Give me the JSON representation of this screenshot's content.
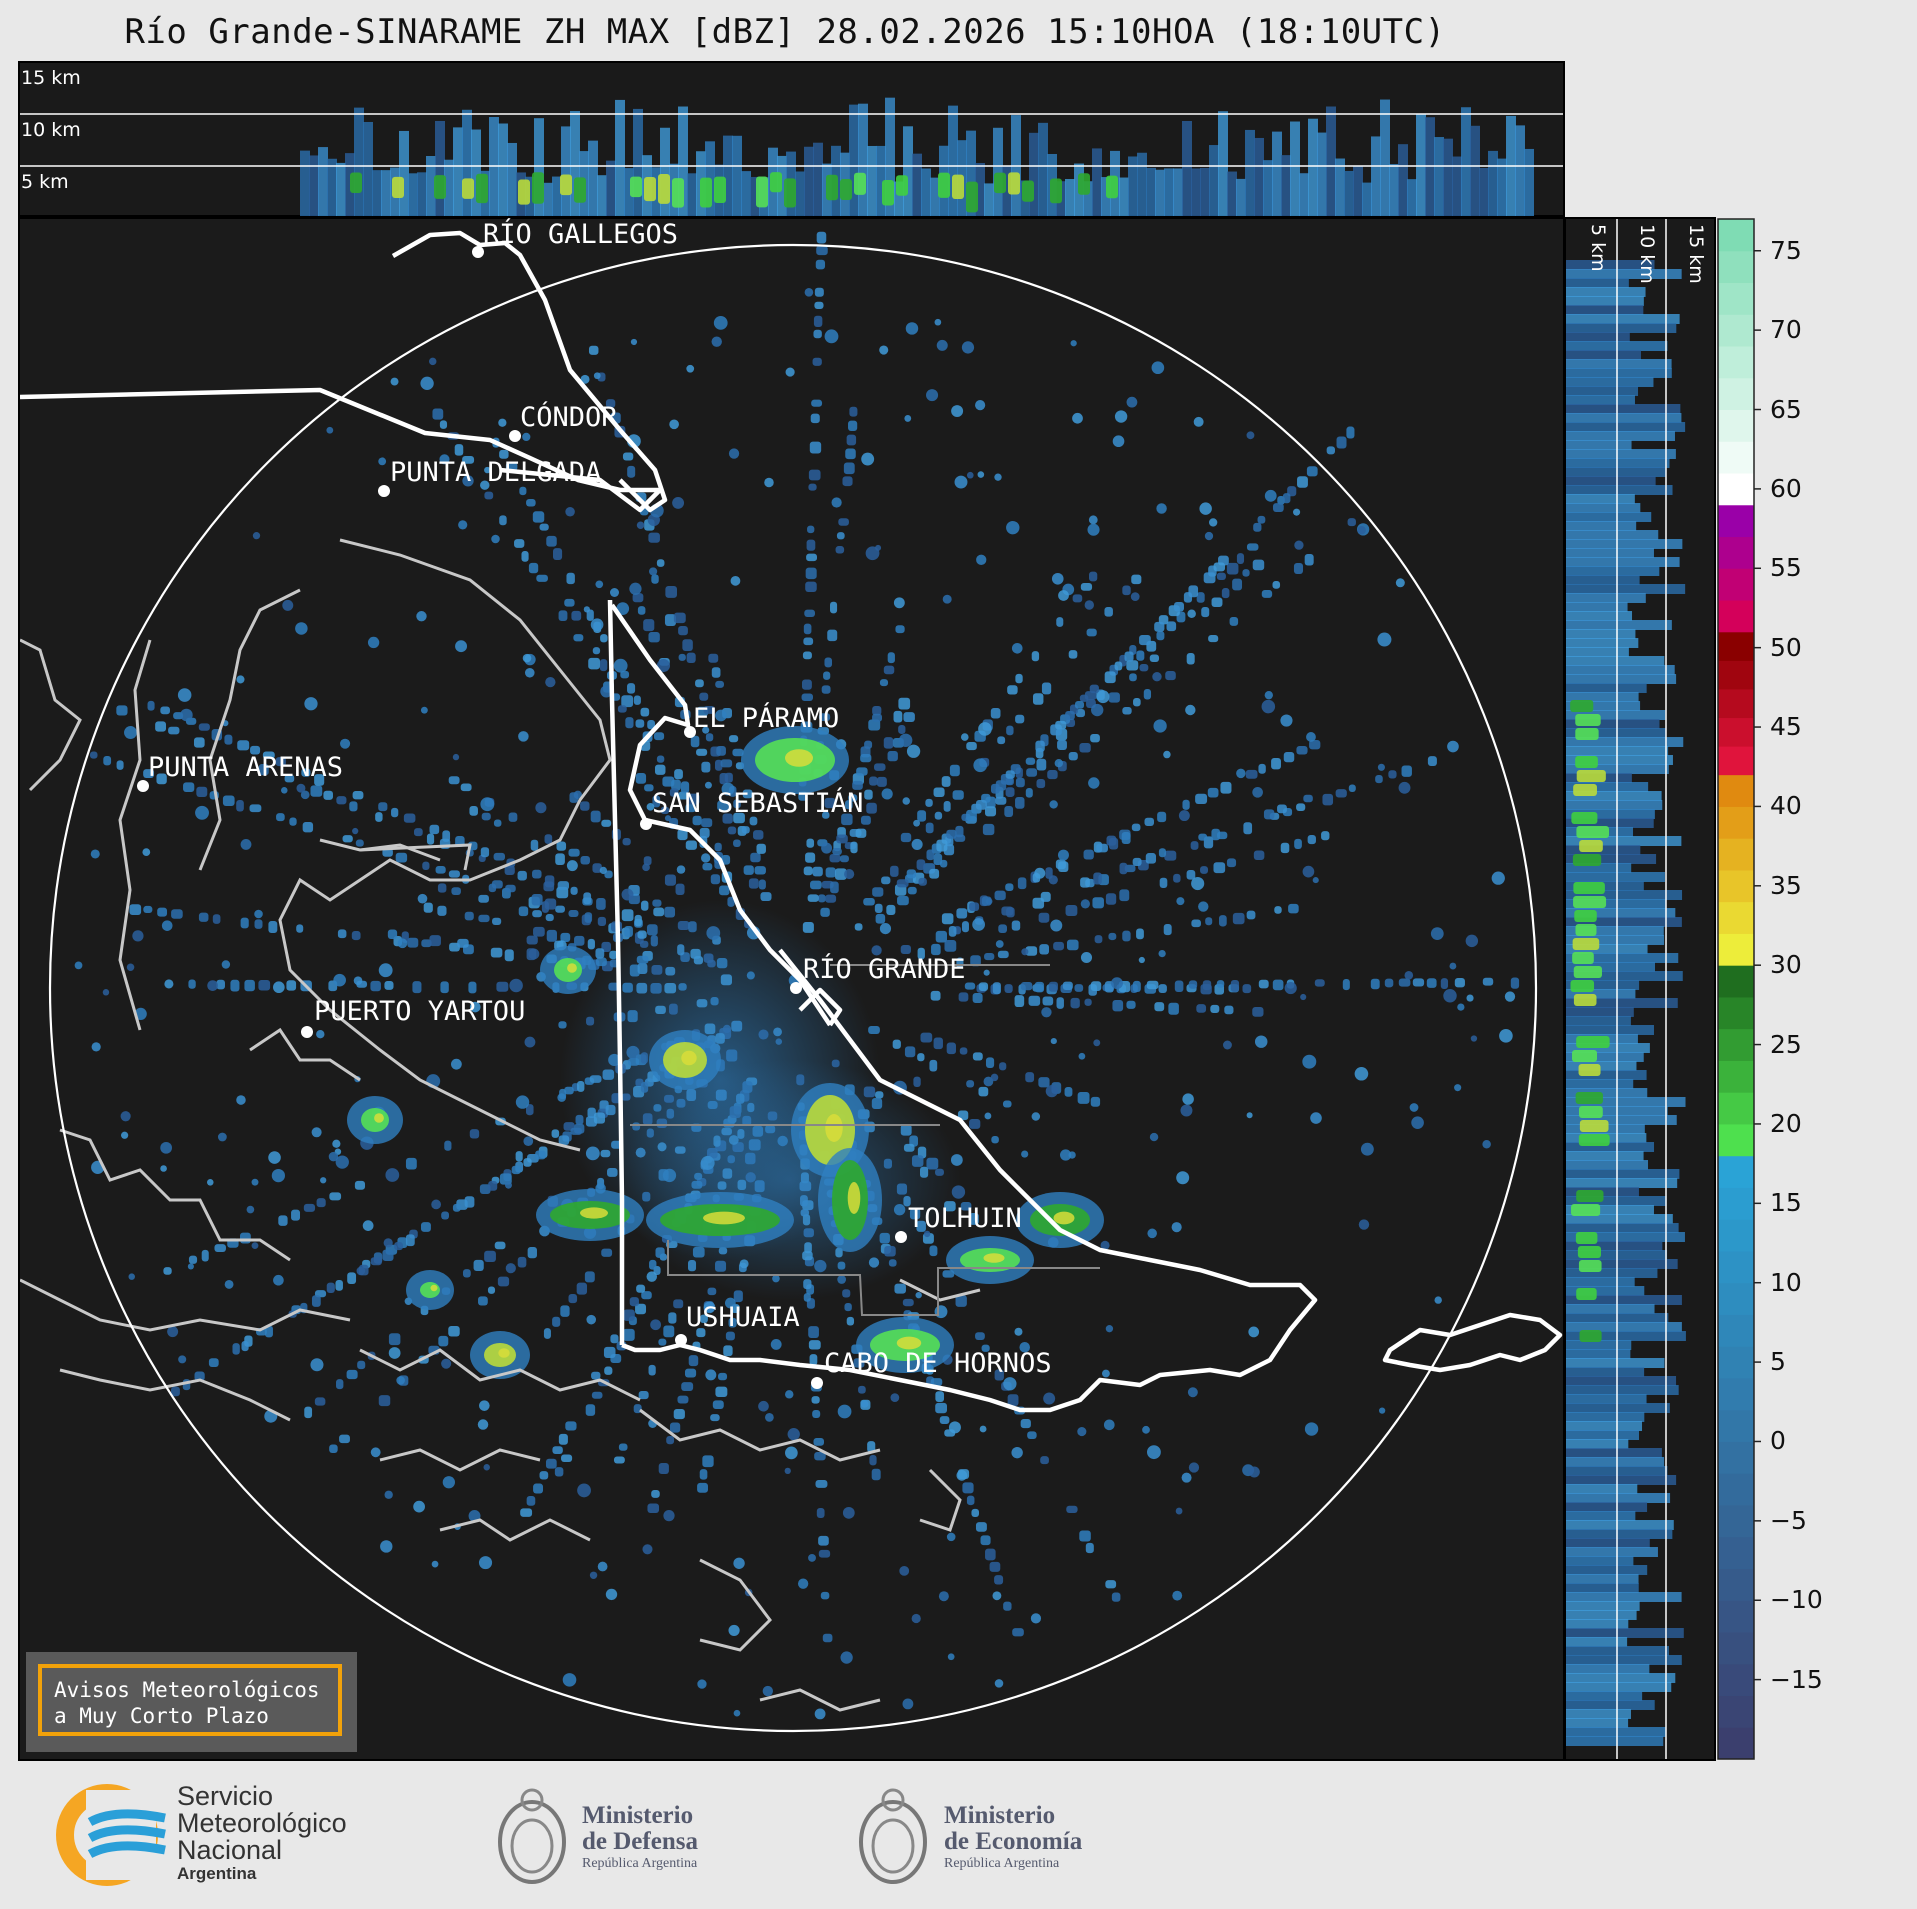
{
  "title": "Río Grande-SINARAME ZH MAX [dBZ] 28.02.2026 15:10HOA (18:10UTC)",
  "top_profile_labels": [
    "15 km",
    "10 km",
    "5 km"
  ],
  "side_profile_labels": [
    "5 km",
    "10 km",
    "15 km"
  ],
  "cities": [
    {
      "name": "RÍO GALLEGOS"
    },
    {
      "name": "CÓNDOR"
    },
    {
      "name": "PUNTA DELGADA"
    },
    {
      "name": "EL PÁRAMO"
    },
    {
      "name": "PUNTA ARENAS"
    },
    {
      "name": "SAN SEBASTIÁN"
    },
    {
      "name": "RÍO GRANDE"
    },
    {
      "name": "PUERTO YARTOU"
    },
    {
      "name": "TOLHUIN"
    },
    {
      "name": "USHUAIA"
    },
    {
      "name": "CABO DE HORNOS"
    }
  ],
  "colorbar": {
    "unit": "dBZ",
    "ticks": [
      "75",
      "70",
      "65",
      "60",
      "55",
      "50",
      "45",
      "40",
      "35",
      "30",
      "25",
      "20",
      "15",
      "10",
      "5",
      "0",
      "−5",
      "−10",
      "−15"
    ],
    "bands": [
      {
        "from": -20,
        "to": 18,
        "color_low": "#3b3f6e",
        "color_high": "#2aa3d6"
      },
      {
        "from": 18,
        "to": 30,
        "color_low": "#4ee04e",
        "color_high": "#1f6e1f"
      },
      {
        "from": 30,
        "to": 42,
        "color_low": "#eded3a",
        "color_high": "#e08a10"
      },
      {
        "from": 42,
        "to": 51,
        "color_low": "#e0143c",
        "color_high": "#8a0000"
      },
      {
        "from": 51,
        "to": 59,
        "color_low": "#d4005a",
        "color_high": "#9a00a8"
      },
      {
        "from": 59,
        "to": 77,
        "color_low": "#ffffff",
        "color_high": "#7fdcb4"
      }
    ]
  },
  "warning": {
    "line1": "Avisos Meteorológicos",
    "line2": "a Muy Corto Plazo"
  },
  "logos": {
    "smn": [
      "Servicio",
      "Meteorológico",
      "Nacional",
      "Argentina"
    ],
    "defensa": [
      "Ministerio",
      "de Defensa",
      "República Argentina"
    ],
    "economia": [
      "Ministerio",
      "de Economía",
      "República Argentina"
    ],
    "smn_colors": [
      "#f5a623",
      "#2a9fd8"
    ]
  }
}
